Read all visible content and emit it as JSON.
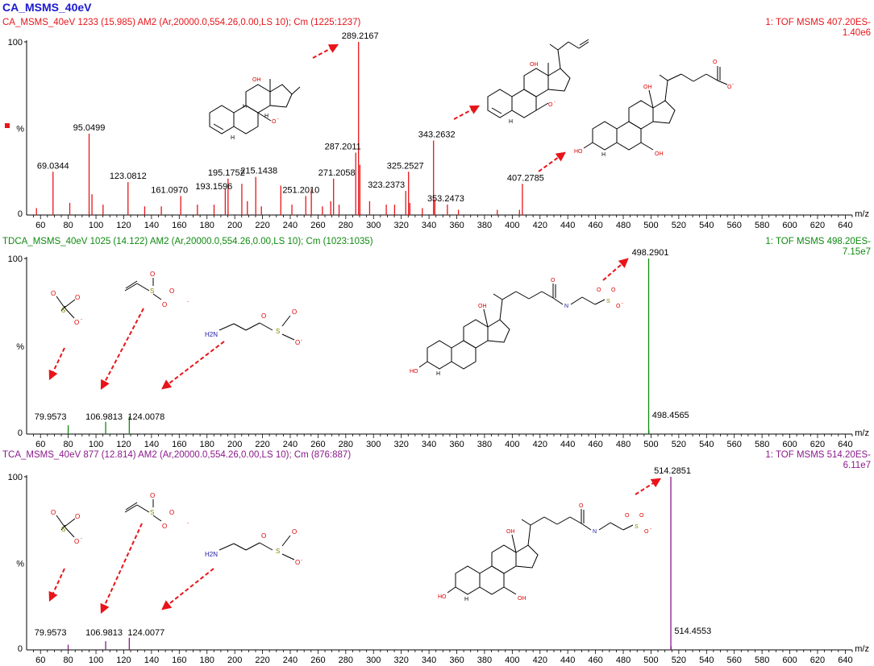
{
  "page_title": "CA_MSMS_40eV",
  "colors": {
    "ca": "#e8141a",
    "tdca": "#0f8a0f",
    "tca": "#8b1a8b",
    "arrow": "#e8141a",
    "axis": "#000000"
  },
  "chart_data": [
    {
      "type": "bar",
      "header_left": "CA_MSMS_40eV 1233 (15.985) AM2 (Ar,20000.0,554.26,0.00,LS 10); Cm (1225:1237)",
      "header_right_1": "1: TOF MSMS 407.20ES-",
      "header_right_2": "1.40e6",
      "xlabel": "m/z",
      "ylabel": "%",
      "xlim": [
        50,
        645
      ],
      "ylim": [
        0,
        100
      ],
      "y_ticks": [
        "100",
        "0"
      ],
      "x_ticks": [
        60,
        80,
        100,
        120,
        140,
        160,
        180,
        200,
        220,
        240,
        260,
        280,
        300,
        320,
        340,
        360,
        380,
        400,
        420,
        440,
        460,
        480,
        500,
        520,
        540,
        560,
        580,
        600,
        620,
        640
      ],
      "peaks": [
        {
          "x": 289.2167,
          "y": 100,
          "label": "289.2167"
        },
        {
          "x": 95.0499,
          "y": 47,
          "label": "95.0499"
        },
        {
          "x": 343.2632,
          "y": 43,
          "label": "343.2632"
        },
        {
          "x": 287.2011,
          "y": 36,
          "label": "287.2011"
        },
        {
          "x": 69.0344,
          "y": 25,
          "label": "69.0344"
        },
        {
          "x": 325.2527,
          "y": 25,
          "label": "325.2527"
        },
        {
          "x": 271.2058,
          "y": 21,
          "label": "271.2058"
        },
        {
          "x": 123.0812,
          "y": 19,
          "label": "123.0812"
        },
        {
          "x": 195.1752,
          "y": 21,
          "label": "195.1752"
        },
        {
          "x": 215.1438,
          "y": 22,
          "label": "215.1438"
        },
        {
          "x": 407.2785,
          "y": 18,
          "label": "407.2785"
        },
        {
          "x": 193.1596,
          "y": 15,
          "label": "193.1596"
        },
        {
          "x": 161.097,
          "y": 11,
          "label": "161.0970"
        },
        {
          "x": 251.201,
          "y": 11,
          "label": "251.2010"
        },
        {
          "x": 323.2373,
          "y": 14,
          "label": "323.2373"
        },
        {
          "x": 353.2473,
          "y": 6,
          "label": "353.2473"
        },
        {
          "x": 290.2,
          "y": 29,
          "label": ""
        },
        {
          "x": 344.2,
          "y": 9,
          "label": ""
        },
        {
          "x": 97.1,
          "y": 12,
          "label": ""
        },
        {
          "x": 233.2,
          "y": 17,
          "label": ""
        },
        {
          "x": 205.1,
          "y": 18,
          "label": ""
        },
        {
          "x": 326.2,
          "y": 7,
          "label": ""
        },
        {
          "x": 255.2,
          "y": 15,
          "label": ""
        },
        {
          "x": 105.1,
          "y": 6,
          "label": ""
        },
        {
          "x": 81.1,
          "y": 7,
          "label": ""
        },
        {
          "x": 209.1,
          "y": 8,
          "label": ""
        },
        {
          "x": 269.2,
          "y": 8,
          "label": ""
        },
        {
          "x": 297.2,
          "y": 8,
          "label": ""
        },
        {
          "x": 275.2,
          "y": 6,
          "label": ""
        },
        {
          "x": 309.2,
          "y": 6,
          "label": ""
        },
        {
          "x": 57.1,
          "y": 4,
          "label": ""
        },
        {
          "x": 135.1,
          "y": 5,
          "label": ""
        },
        {
          "x": 147.1,
          "y": 5,
          "label": ""
        },
        {
          "x": 173.1,
          "y": 6,
          "label": ""
        },
        {
          "x": 185.1,
          "y": 6,
          "label": ""
        },
        {
          "x": 219.2,
          "y": 5,
          "label": ""
        },
        {
          "x": 241.2,
          "y": 6,
          "label": ""
        },
        {
          "x": 263.2,
          "y": 5,
          "label": ""
        },
        {
          "x": 315.2,
          "y": 6,
          "label": ""
        },
        {
          "x": 335.2,
          "y": 4,
          "label": ""
        },
        {
          "x": 361.2,
          "y": 3,
          "label": ""
        },
        {
          "x": 389.2,
          "y": 3,
          "label": ""
        },
        {
          "x": 405.2,
          "y": 3,
          "label": ""
        }
      ]
    },
    {
      "type": "bar",
      "header_left": "TDCA_MSMS_40eV 1025 (14.122) AM2 (Ar,20000.0,554.26,0.00,LS 10); Cm (1023:1035)",
      "header_right_1": "1: TOF MSMS 498.20ES-",
      "header_right_2": "7.15e7",
      "xlabel": "m/z",
      "ylabel": "%",
      "xlim": [
        50,
        645
      ],
      "ylim": [
        0,
        100
      ],
      "y_ticks": [
        "100",
        "0"
      ],
      "x_ticks": [
        60,
        80,
        100,
        120,
        140,
        160,
        180,
        200,
        220,
        240,
        260,
        280,
        300,
        320,
        340,
        360,
        380,
        400,
        420,
        440,
        460,
        480,
        500,
        520,
        540,
        560,
        580,
        600,
        620,
        640
      ],
      "peaks": [
        {
          "x": 498.2901,
          "y": 100,
          "label": "498.2901"
        },
        {
          "x": 79.9573,
          "y": 5,
          "label": "79.9573"
        },
        {
          "x": 106.9813,
          "y": 7,
          "label": "106.9813"
        },
        {
          "x": 124.0078,
          "y": 10,
          "label": "124.0078"
        },
        {
          "x": 498.4565,
          "y": 2,
          "label": "498.4565"
        }
      ]
    },
    {
      "type": "bar",
      "header_left": "TCA_MSMS_40eV 877 (12.814) AM2 (Ar,20000.0,554.26,0.00,LS 10); Cm (876:887)",
      "header_right_1": "1: TOF MSMS 514.20ES-",
      "header_right_2": "6.11e7",
      "xlabel": "m/z",
      "ylabel": "%",
      "xlim": [
        50,
        645
      ],
      "ylim": [
        0,
        100
      ],
      "y_ticks": [
        "100",
        "0"
      ],
      "x_ticks": [
        60,
        80,
        100,
        120,
        140,
        160,
        180,
        200,
        220,
        240,
        260,
        280,
        300,
        320,
        340,
        360,
        380,
        400,
        420,
        440,
        460,
        480,
        500,
        520,
        540,
        560,
        580,
        600,
        620,
        640
      ],
      "peaks": [
        {
          "x": 514.2851,
          "y": 100,
          "label": "514.2851"
        },
        {
          "x": 79.9573,
          "y": 3,
          "label": "79.9573"
        },
        {
          "x": 106.9813,
          "y": 5,
          "label": "106.9813"
        },
        {
          "x": 124.0077,
          "y": 7,
          "label": "124.0077"
        },
        {
          "x": 514.4553,
          "y": 2,
          "label": "514.4553"
        }
      ]
    }
  ],
  "structure_labels": {
    "hydroxyl": "OH",
    "hydroxyl_left": "HO",
    "hydrogen": "H",
    "oxide": "O",
    "charge": "-",
    "sulfur": "S",
    "amine": "H2N",
    "amide_nh": "N",
    "amide_h": "H"
  }
}
